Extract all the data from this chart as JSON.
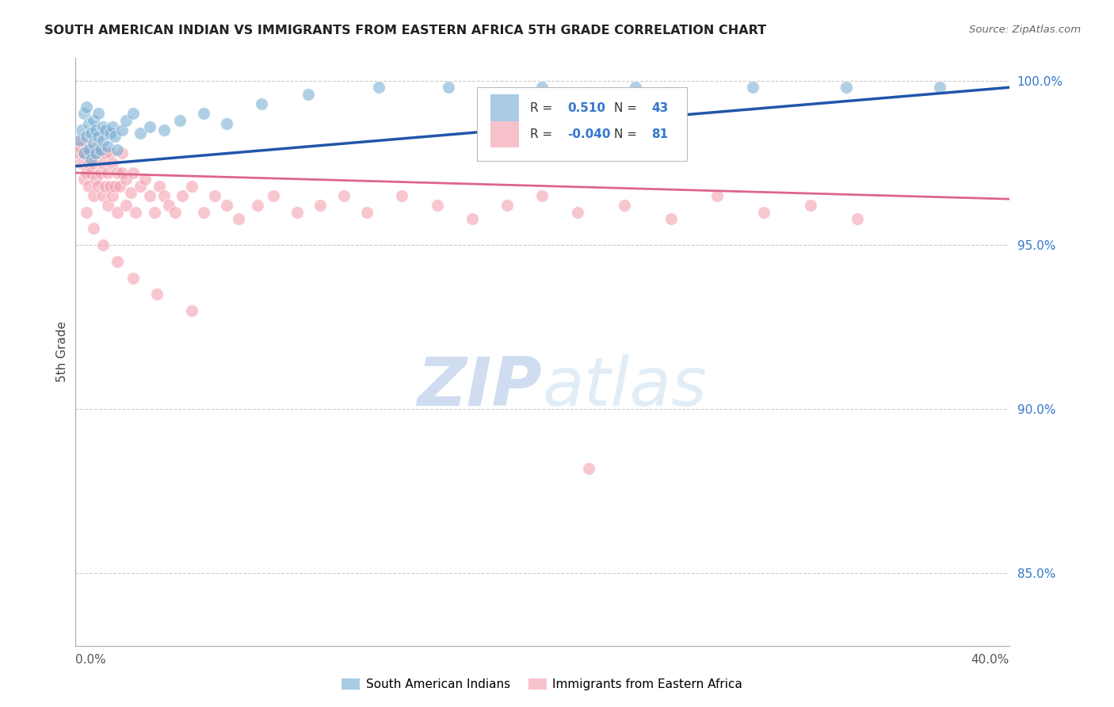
{
  "title": "SOUTH AMERICAN INDIAN VS IMMIGRANTS FROM EASTERN AFRICA 5TH GRADE CORRELATION CHART",
  "source": "Source: ZipAtlas.com",
  "ylabel": "5th Grade",
  "right_yticks": [
    "100.0%",
    "95.0%",
    "90.0%",
    "85.0%"
  ],
  "right_ytick_values": [
    1.0,
    0.95,
    0.9,
    0.85
  ],
  "legend_blue_label": "South American Indians",
  "legend_pink_label": "Immigrants from Eastern Africa",
  "blue_color": "#7bafd4",
  "pink_color": "#f4a0b0",
  "blue_line_color": "#2255aa",
  "pink_line_color": "#dd6688",
  "title_color": "#222222",
  "source_color": "#666666",
  "right_axis_color": "#3377cc",
  "watermark_color": "#dde8f5",
  "grid_color": "#cccccc",
  "xlim": [
    0.0,
    0.4
  ],
  "ylim": [
    0.828,
    1.007
  ],
  "blue_trend_x": [
    0.0,
    0.4
  ],
  "blue_trend_y": [
    0.974,
    0.998
  ],
  "pink_trend_x": [
    0.0,
    0.4
  ],
  "pink_trend_y": [
    0.972,
    0.964
  ],
  "blue_x": [
    0.002,
    0.003,
    0.004,
    0.004,
    0.005,
    0.005,
    0.006,
    0.006,
    0.007,
    0.007,
    0.008,
    0.008,
    0.009,
    0.009,
    0.01,
    0.01,
    0.011,
    0.012,
    0.012,
    0.013,
    0.014,
    0.015,
    0.016,
    0.017,
    0.018,
    0.02,
    0.022,
    0.025,
    0.028,
    0.032,
    0.038,
    0.045,
    0.055,
    0.065,
    0.08,
    0.1,
    0.13,
    0.16,
    0.2,
    0.24,
    0.29,
    0.33,
    0.37
  ],
  "blue_y": [
    0.982,
    0.985,
    0.978,
    0.99,
    0.983,
    0.992,
    0.979,
    0.987,
    0.984,
    0.976,
    0.988,
    0.981,
    0.985,
    0.978,
    0.983,
    0.99,
    0.979,
    0.986,
    0.982,
    0.985,
    0.98,
    0.984,
    0.986,
    0.983,
    0.979,
    0.985,
    0.988,
    0.99,
    0.984,
    0.986,
    0.985,
    0.988,
    0.99,
    0.987,
    0.993,
    0.996,
    0.998,
    0.998,
    0.998,
    0.998,
    0.998,
    0.998,
    0.998
  ],
  "pink_x": [
    0.001,
    0.002,
    0.003,
    0.003,
    0.004,
    0.004,
    0.005,
    0.005,
    0.006,
    0.006,
    0.007,
    0.007,
    0.008,
    0.008,
    0.009,
    0.009,
    0.01,
    0.01,
    0.011,
    0.011,
    0.012,
    0.012,
    0.013,
    0.013,
    0.014,
    0.014,
    0.015,
    0.015,
    0.016,
    0.016,
    0.017,
    0.018,
    0.018,
    0.019,
    0.02,
    0.02,
    0.022,
    0.022,
    0.024,
    0.025,
    0.026,
    0.028,
    0.03,
    0.032,
    0.034,
    0.036,
    0.038,
    0.04,
    0.043,
    0.046,
    0.05,
    0.055,
    0.06,
    0.065,
    0.07,
    0.078,
    0.085,
    0.095,
    0.105,
    0.115,
    0.125,
    0.14,
    0.155,
    0.17,
    0.185,
    0.2,
    0.215,
    0.235,
    0.255,
    0.275,
    0.295,
    0.315,
    0.335,
    0.005,
    0.008,
    0.012,
    0.018,
    0.025,
    0.035,
    0.05,
    0.22
  ],
  "pink_y": [
    0.978,
    0.98,
    0.975,
    0.982,
    0.97,
    0.978,
    0.972,
    0.98,
    0.968,
    0.975,
    0.972,
    0.978,
    0.965,
    0.975,
    0.97,
    0.978,
    0.968,
    0.98,
    0.972,
    0.978,
    0.965,
    0.975,
    0.968,
    0.978,
    0.962,
    0.972,
    0.968,
    0.978,
    0.965,
    0.975,
    0.968,
    0.972,
    0.96,
    0.968,
    0.972,
    0.978,
    0.962,
    0.97,
    0.966,
    0.972,
    0.96,
    0.968,
    0.97,
    0.965,
    0.96,
    0.968,
    0.965,
    0.962,
    0.96,
    0.965,
    0.968,
    0.96,
    0.965,
    0.962,
    0.958,
    0.962,
    0.965,
    0.96,
    0.962,
    0.965,
    0.96,
    0.965,
    0.962,
    0.958,
    0.962,
    0.965,
    0.96,
    0.962,
    0.958,
    0.965,
    0.96,
    0.962,
    0.958,
    0.96,
    0.955,
    0.95,
    0.945,
    0.94,
    0.935,
    0.93,
    0.882
  ]
}
